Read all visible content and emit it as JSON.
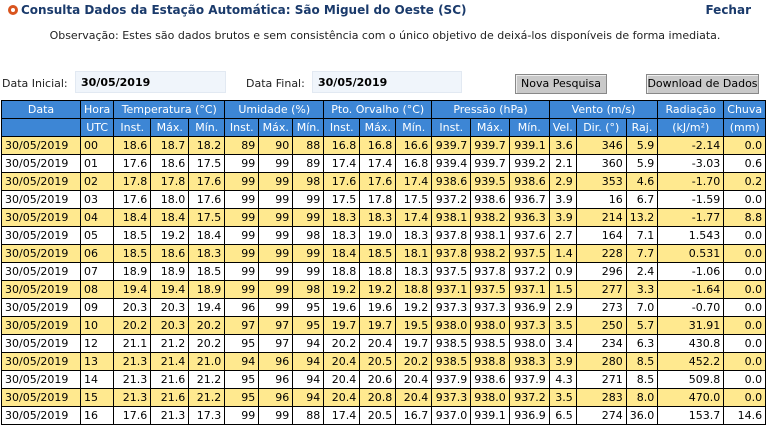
{
  "header": {
    "title": "Consulta Dados da Estação Automática: São Miguel do Oeste (SC)",
    "close_label": "Fechar",
    "note": "Observação: Estes são dados brutos e sem consistência com o único objetivo de deixá-los disponíveis de forma imediata."
  },
  "filters": {
    "start_label": "Data Inicial:",
    "start_value": "30/05/2019",
    "end_label": "Data Final:",
    "end_value": "30/05/2019",
    "new_search_label": "Nova Pesquisa",
    "download_label": "Download de Dados"
  },
  "table": {
    "group_headers": {
      "data": "Data",
      "hora": "Hora",
      "temperatura": "Temperatura (°C)",
      "umidade": "Umidade (%)",
      "orvalho": "Pto. Orvalho (°C)",
      "pressao": "Pressão (hPa)",
      "vento": "Vento (m/s)",
      "radiacao": "Radiação",
      "chuva": "Chuva"
    },
    "sub_headers": {
      "utc": "UTC",
      "temp_inst": "Inst.",
      "temp_max": "Máx.",
      "temp_min": "Mín.",
      "umid_inst": "Inst.",
      "umid_max": "Máx.",
      "umid_min": "Mín.",
      "orv_inst": "Inst.",
      "orv_max": "Máx.",
      "orv_min": "Mín.",
      "pres_inst": "Inst.",
      "pres_max": "Máx.",
      "pres_min": "Mín.",
      "vel": "Vel.",
      "dir": "Dir. (°)",
      "raj": "Raj.",
      "rad_unit": "(kJ/m²)",
      "chuva_unit": "(mm)"
    },
    "rows": [
      [
        "30/05/2019",
        "00",
        "18.6",
        "18.7",
        "18.2",
        "89",
        "90",
        "88",
        "16.8",
        "16.8",
        "16.6",
        "939.7",
        "939.7",
        "939.1",
        "3.6",
        "346",
        "5.9",
        "-2.14",
        "0.0"
      ],
      [
        "30/05/2019",
        "01",
        "17.6",
        "18.6",
        "17.5",
        "99",
        "99",
        "89",
        "17.4",
        "17.4",
        "16.8",
        "939.4",
        "939.7",
        "939.2",
        "2.1",
        "360",
        "5.9",
        "-3.03",
        "0.6"
      ],
      [
        "30/05/2019",
        "02",
        "17.8",
        "17.8",
        "17.6",
        "99",
        "99",
        "98",
        "17.6",
        "17.6",
        "17.4",
        "938.6",
        "939.5",
        "938.6",
        "2.9",
        "353",
        "4.6",
        "-1.70",
        "0.2"
      ],
      [
        "30/05/2019",
        "03",
        "17.6",
        "18.0",
        "17.6",
        "99",
        "99",
        "99",
        "17.5",
        "17.8",
        "17.5",
        "937.2",
        "938.6",
        "936.7",
        "3.9",
        "16",
        "6.7",
        "-1.59",
        "0.0"
      ],
      [
        "30/05/2019",
        "04",
        "18.4",
        "18.4",
        "17.5",
        "99",
        "99",
        "99",
        "18.3",
        "18.3",
        "17.4",
        "938.1",
        "938.2",
        "936.3",
        "3.9",
        "214",
        "13.2",
        "-1.77",
        "8.8"
      ],
      [
        "30/05/2019",
        "05",
        "18.5",
        "19.2",
        "18.4",
        "99",
        "99",
        "98",
        "18.3",
        "19.0",
        "18.3",
        "937.8",
        "938.1",
        "937.6",
        "2.7",
        "164",
        "7.1",
        "1.543",
        "0.0"
      ],
      [
        "30/05/2019",
        "06",
        "18.5",
        "18.6",
        "18.3",
        "99",
        "99",
        "99",
        "18.4",
        "18.5",
        "18.1",
        "937.8",
        "938.2",
        "937.5",
        "1.4",
        "228",
        "7.7",
        "0.531",
        "0.0"
      ],
      [
        "30/05/2019",
        "07",
        "18.9",
        "18.9",
        "18.5",
        "99",
        "99",
        "99",
        "18.8",
        "18.8",
        "18.3",
        "937.5",
        "937.8",
        "937.2",
        "0.9",
        "296",
        "2.4",
        "-1.06",
        "0.0"
      ],
      [
        "30/05/2019",
        "08",
        "19.4",
        "19.4",
        "18.9",
        "99",
        "99",
        "98",
        "19.2",
        "19.2",
        "18.8",
        "937.1",
        "937.5",
        "937.1",
        "1.5",
        "277",
        "3.3",
        "-1.64",
        "0.0"
      ],
      [
        "30/05/2019",
        "09",
        "20.3",
        "20.3",
        "19.4",
        "96",
        "99",
        "95",
        "19.6",
        "19.6",
        "19.2",
        "937.3",
        "937.3",
        "936.9",
        "2.9",
        "273",
        "7.0",
        "-0.70",
        "0.0"
      ],
      [
        "30/05/2019",
        "10",
        "20.2",
        "20.3",
        "20.2",
        "97",
        "97",
        "95",
        "19.7",
        "19.7",
        "19.5",
        "938.0",
        "938.0",
        "937.3",
        "3.5",
        "250",
        "5.7",
        "31.91",
        "0.0"
      ],
      [
        "30/05/2019",
        "12",
        "21.1",
        "21.2",
        "20.2",
        "95",
        "97",
        "94",
        "20.2",
        "20.4",
        "19.7",
        "938.5",
        "938.5",
        "938.0",
        "3.4",
        "234",
        "6.3",
        "430.8",
        "0.0"
      ],
      [
        "30/05/2019",
        "13",
        "21.3",
        "21.4",
        "21.0",
        "94",
        "96",
        "94",
        "20.4",
        "20.5",
        "20.2",
        "938.5",
        "938.8",
        "938.3",
        "3.9",
        "280",
        "8.5",
        "452.2",
        "0.0"
      ],
      [
        "30/05/2019",
        "14",
        "21.3",
        "21.6",
        "21.2",
        "95",
        "96",
        "94",
        "20.4",
        "20.6",
        "20.4",
        "937.9",
        "938.6",
        "937.9",
        "4.3",
        "271",
        "8.5",
        "509.8",
        "0.0"
      ],
      [
        "30/05/2019",
        "15",
        "21.3",
        "21.6",
        "21.2",
        "95",
        "96",
        "94",
        "20.4",
        "20.8",
        "20.4",
        "937.3",
        "938.0",
        "937.2",
        "3.5",
        "283",
        "8.0",
        "470.0",
        "0.0"
      ],
      [
        "30/05/2019",
        "16",
        "17.6",
        "21.3",
        "17.3",
        "99",
        "99",
        "88",
        "17.4",
        "20.5",
        "16.7",
        "937.0",
        "939.1",
        "936.9",
        "6.5",
        "274",
        "36.0",
        "153.7",
        "14.6"
      ]
    ]
  }
}
